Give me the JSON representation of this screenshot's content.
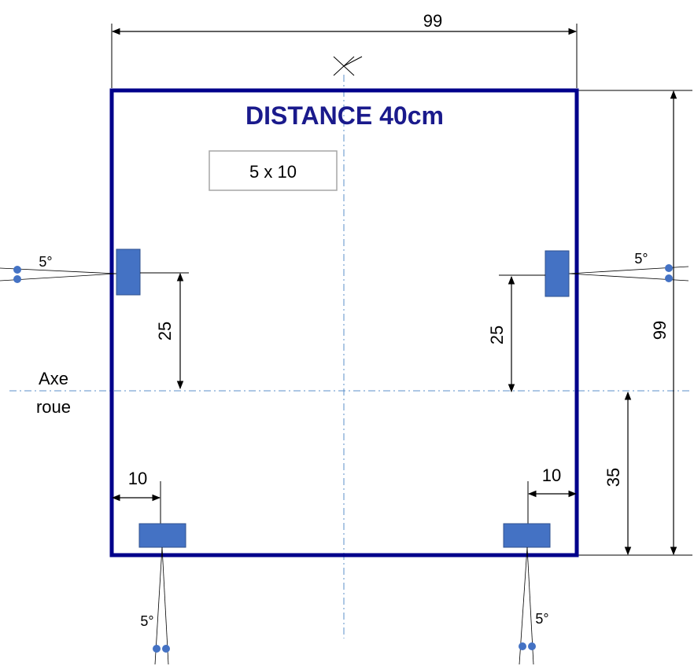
{
  "title": "DISTANCE 40cm",
  "note_box": "5 x 10",
  "axis_label": {
    "line1": "Axe",
    "line2": "roue"
  },
  "dimensions": {
    "top_width": "99",
    "right_height": "99",
    "left_sensor_offset": "25",
    "right_sensor_offset": "25",
    "bottom_right_height": "35",
    "bottom_left_inset": "10",
    "bottom_right_inset": "10"
  },
  "angles": {
    "left": "5°",
    "right": "5°",
    "bottom_left": "5°",
    "bottom_right": "5°"
  },
  "colors": {
    "frame": "#00008B",
    "title": "#1a1a8c",
    "sensor_fill": "#4472C4",
    "sensor_stroke": "#2f528f",
    "centerline": "#5b8fc9",
    "note_border": "#a6a6a6",
    "dot": "#4472C4"
  }
}
